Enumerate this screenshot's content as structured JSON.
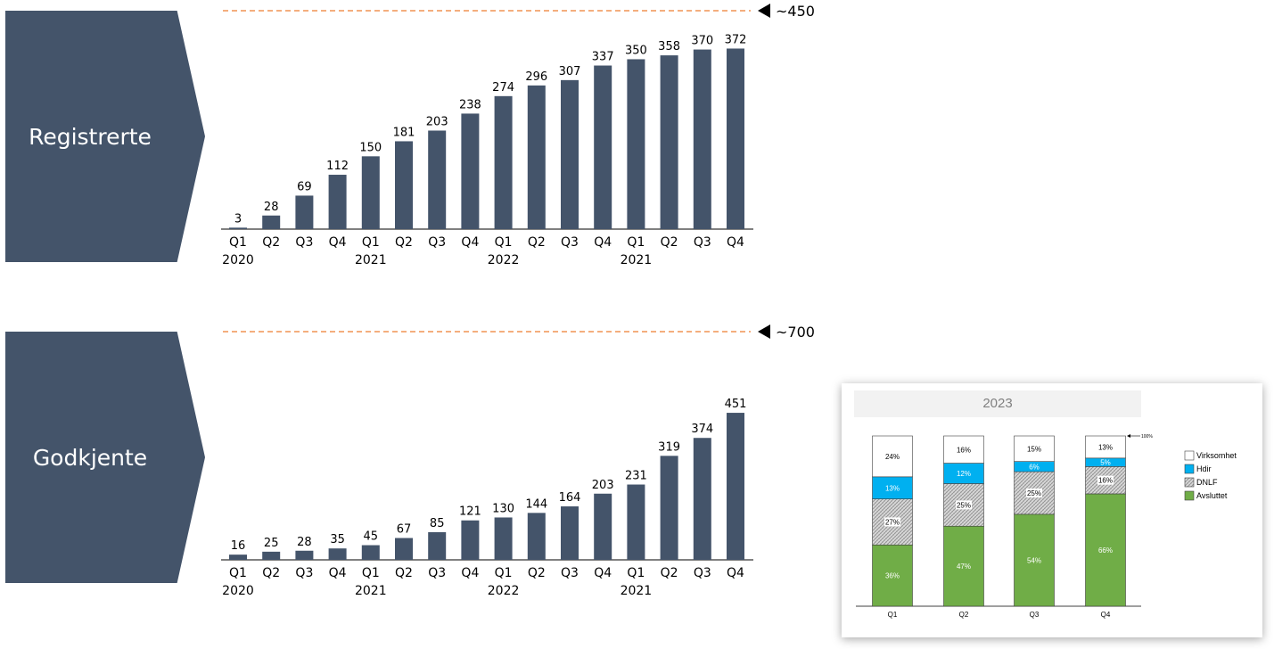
{
  "sections": [
    {
      "label": "Registrerte"
    },
    {
      "label": "Godkjente"
    }
  ],
  "colors": {
    "bar": "#44546a",
    "target_line": "#ed7d31",
    "chevron": "#44546a",
    "avsluttet": "#70ad47",
    "hdir": "#00b0f0",
    "dnlf": "#d9d9d9",
    "virksomhet": "#ffffff"
  },
  "chart_data": [
    {
      "type": "bar",
      "title": "Registrerte",
      "categories": [
        "Q1",
        "Q2",
        "Q3",
        "Q4",
        "Q1",
        "Q2",
        "Q3",
        "Q4",
        "Q1",
        "Q2",
        "Q3",
        "Q4",
        "Q1",
        "Q2",
        "Q3",
        "Q4"
      ],
      "year_labels": [
        {
          "index": 0,
          "label": "2020"
        },
        {
          "index": 4,
          "label": "2021"
        },
        {
          "index": 8,
          "label": "2022"
        },
        {
          "index": 12,
          "label": "2021"
        }
      ],
      "values": [
        3,
        28,
        69,
        112,
        150,
        181,
        203,
        238,
        274,
        296,
        307,
        337,
        350,
        358,
        370,
        372
      ],
      "target": {
        "value": 450,
        "label": "~450"
      },
      "ylim": [
        0,
        450
      ]
    },
    {
      "type": "bar",
      "title": "Godkjente",
      "categories": [
        "Q1",
        "Q2",
        "Q3",
        "Q4",
        "Q1",
        "Q2",
        "Q3",
        "Q4",
        "Q1",
        "Q2",
        "Q3",
        "Q4",
        "Q1",
        "Q2",
        "Q3",
        "Q4"
      ],
      "year_labels": [
        {
          "index": 0,
          "label": "2020"
        },
        {
          "index": 4,
          "label": "2021"
        },
        {
          "index": 8,
          "label": "2022"
        },
        {
          "index": 12,
          "label": "2021"
        }
      ],
      "values": [
        16,
        25,
        28,
        35,
        45,
        67,
        85,
        121,
        130,
        144,
        164,
        203,
        231,
        319,
        374,
        451
      ],
      "target": {
        "value": 700,
        "label": "~700"
      },
      "ylim": [
        0,
        700
      ]
    },
    {
      "type": "bar",
      "stacked": true,
      "title": "2023",
      "categories": [
        "Q1",
        "Q2",
        "Q3",
        "Q4"
      ],
      "series": [
        {
          "name": "Avsluttet",
          "values": [
            36,
            47,
            54,
            66
          ],
          "labels": [
            "36%",
            "47%",
            "54%",
            "66%"
          ]
        },
        {
          "name": "DNLF",
          "values": [
            27,
            25,
            25,
            16
          ],
          "labels": [
            "27%",
            "25%",
            "25%",
            "16%"
          ]
        },
        {
          "name": "Hdir",
          "values": [
            13,
            12,
            6,
            5
          ],
          "labels": [
            "13%",
            "12%",
            "6%",
            "5%"
          ]
        },
        {
          "name": "Virksomhet",
          "values": [
            24,
            16,
            15,
            13
          ],
          "labels": [
            "24%",
            "16%",
            "15%",
            "13%"
          ]
        }
      ],
      "legend": [
        "Virksomhet",
        "Hdir",
        "DNLF",
        "Avsluttet"
      ],
      "annotation": "100%",
      "ylim": [
        0,
        100
      ]
    }
  ]
}
